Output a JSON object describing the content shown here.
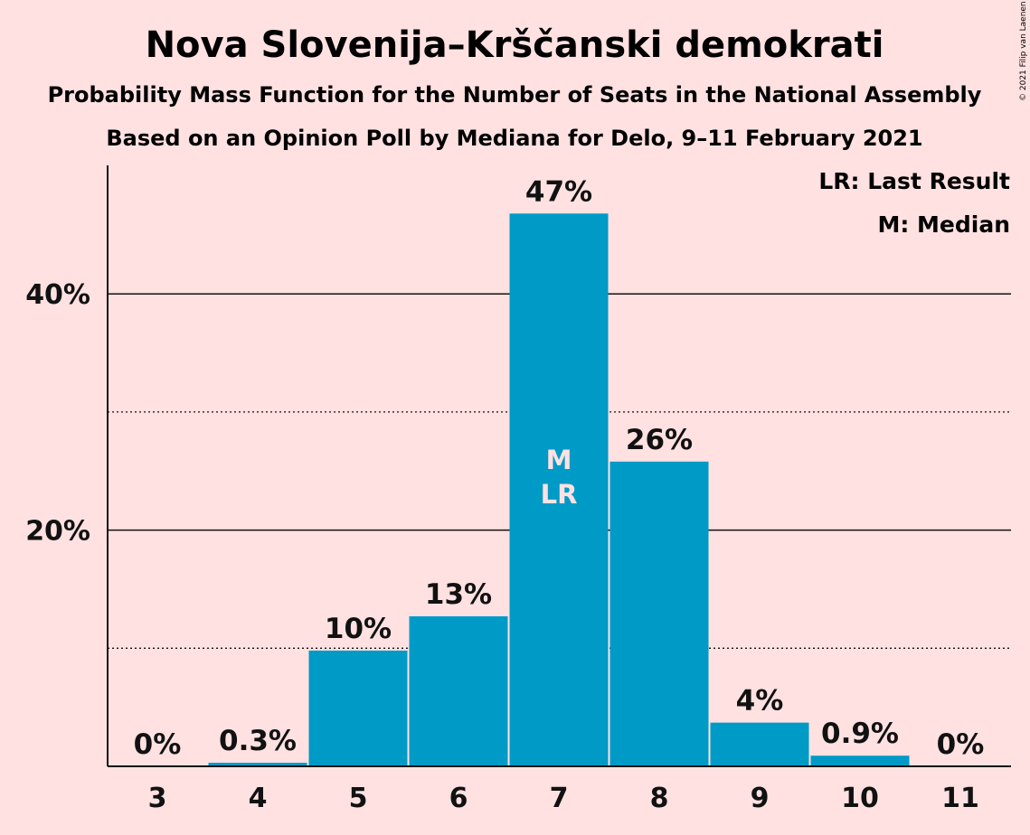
{
  "title": "Nova Slovenija–Krščanski demokrati",
  "subtitle1": "Probability Mass Function for the Number of Seats in the National Assembly",
  "subtitle2": "Based on an Opinion Poll by Mediana for Delo, 9–11 February 2021",
  "copyright": "© 2021 Filip van Laenen",
  "legend": {
    "lr": "LR: Last Result",
    "m": "M: Median"
  },
  "colors": {
    "background": "#FFE1E1",
    "bar": "#009AC7",
    "text": "#111111"
  },
  "chart_data": {
    "type": "bar",
    "title": "Nova Slovenija–Krščanski demokrati",
    "xlabel": "",
    "ylabel": "",
    "categories": [
      "3",
      "4",
      "5",
      "6",
      "7",
      "8",
      "9",
      "10",
      "11"
    ],
    "values": [
      0,
      0.3,
      9.8,
      12.7,
      46.8,
      25.8,
      3.7,
      0.9,
      0
    ],
    "data_labels": [
      "0%",
      "0.3%",
      "10%",
      "13%",
      "47%",
      "26%",
      "4%",
      "0.9%",
      "0%"
    ],
    "ylim": [
      0,
      50
    ],
    "yticks": [
      {
        "value": 20,
        "label": "20%"
      },
      {
        "value": 40,
        "label": "40%"
      }
    ],
    "minor_gridlines": [
      10,
      30
    ],
    "bar_markers": [
      {
        "category": "7",
        "lines": [
          "M",
          "LR"
        ]
      }
    ],
    "legend_position": "top-right",
    "grid": true
  }
}
